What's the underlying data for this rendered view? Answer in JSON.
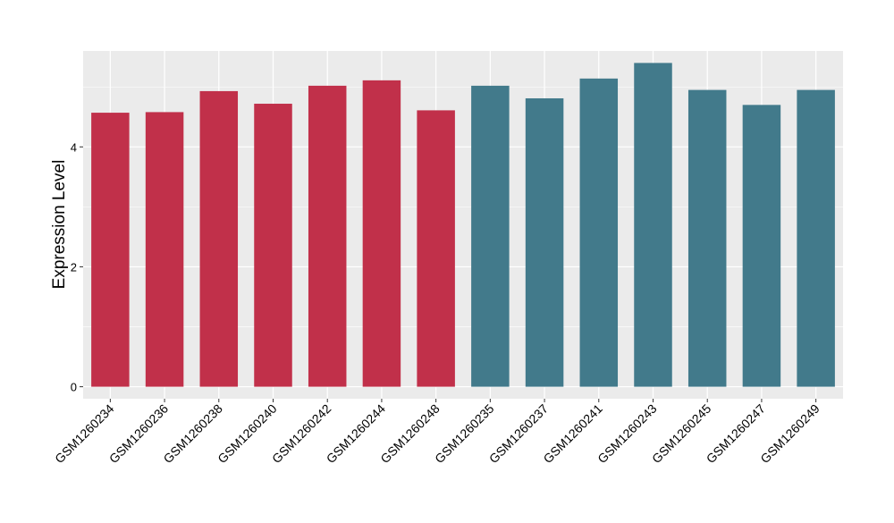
{
  "chart_data": {
    "type": "bar",
    "title": "",
    "xlabel": "",
    "ylabel": "Expression Level",
    "ylim": [
      -0.2,
      5.6
    ],
    "yticks": [
      0,
      2,
      4
    ],
    "grid": true,
    "categories": [
      "GSM1260234",
      "GSM1260236",
      "GSM1260238",
      "GSM1260240",
      "GSM1260242",
      "GSM1260244",
      "GSM1260248",
      "GSM1260235",
      "GSM1260237",
      "GSM1260241",
      "GSM1260243",
      "GSM1260245",
      "GSM1260247",
      "GSM1260249"
    ],
    "values": [
      4.57,
      4.58,
      4.93,
      4.72,
      5.02,
      5.11,
      4.61,
      5.02,
      4.81,
      5.14,
      5.4,
      4.95,
      4.7,
      4.95
    ],
    "bar_colors": [
      "#C1304A",
      "#C1304A",
      "#C1304A",
      "#C1304A",
      "#C1304A",
      "#C1304A",
      "#C1304A",
      "#427A8B",
      "#427A8B",
      "#427A8B",
      "#427A8B",
      "#427A8B",
      "#427A8B",
      "#427A8B"
    ],
    "panel_color": "#EBEBEB",
    "grid_color": "#FFFFFF",
    "tick_color": "#333333"
  }
}
